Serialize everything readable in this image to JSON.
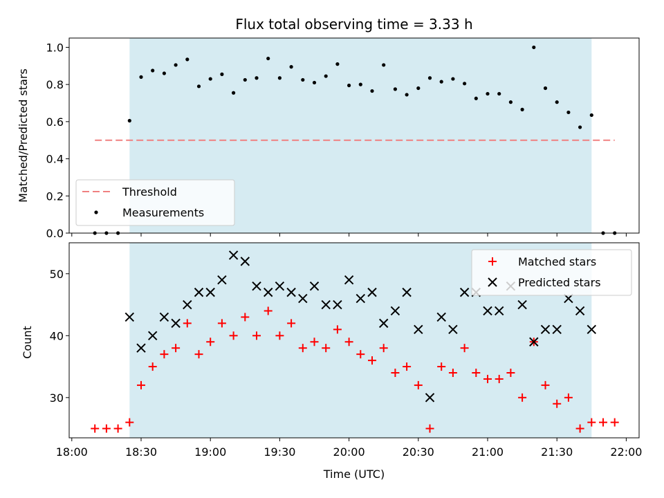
{
  "chart_data": [
    {
      "type": "scatter",
      "title": "Flux total observing time = 3.33 h",
      "xlabel": "",
      "ylabel": "Matched/Predicted stars",
      "xlim": [
        "18:00",
        "22:00"
      ],
      "ylim": [
        0.0,
        1.05
      ],
      "yticks": [
        "0.0",
        "0.2",
        "0.4",
        "0.6",
        "0.8",
        "1.0"
      ],
      "shaded_interval": [
        "18:25",
        "21:45"
      ],
      "shade_color": "#add8e6",
      "legend_position": "lower-left",
      "series": [
        {
          "name": "Threshold",
          "type": "line",
          "style": "dashed",
          "color": "#f08080",
          "x": [
            "18:10",
            "21:55"
          ],
          "y": [
            0.5,
            0.5
          ]
        },
        {
          "name": "Measurements",
          "type": "scatter",
          "marker": "dot",
          "color": "#000000",
          "x": [
            "18:10",
            "18:15",
            "18:20",
            "18:25",
            "18:30",
            "18:35",
            "18:40",
            "18:45",
            "18:50",
            "18:55",
            "19:00",
            "19:05",
            "19:10",
            "19:15",
            "19:20",
            "19:25",
            "19:30",
            "19:35",
            "19:40",
            "19:45",
            "19:50",
            "19:55",
            "20:00",
            "20:05",
            "20:10",
            "20:15",
            "20:20",
            "20:25",
            "20:30",
            "20:35",
            "20:40",
            "20:45",
            "20:50",
            "20:55",
            "21:00",
            "21:05",
            "21:10",
            "21:15",
            "21:20",
            "21:25",
            "21:30",
            "21:35",
            "21:40",
            "21:45",
            "21:50",
            "21:55"
          ],
          "y": [
            0.0,
            0.0,
            0.0,
            0.605,
            0.84,
            0.875,
            0.86,
            0.905,
            0.935,
            0.79,
            0.83,
            0.855,
            0.755,
            0.825,
            0.835,
            0.94,
            0.835,
            0.895,
            0.825,
            0.81,
            0.845,
            0.91,
            0.795,
            0.8,
            0.765,
            0.905,
            0.775,
            0.745,
            0.78,
            0.835,
            0.815,
            0.83,
            0.805,
            0.725,
            0.75,
            0.75,
            0.705,
            0.665,
            1.0,
            0.78,
            0.705,
            0.65,
            0.57,
            0.635,
            0.0,
            0.0
          ]
        }
      ]
    },
    {
      "type": "scatter",
      "xlabel": "Time (UTC)",
      "ylabel": "Count",
      "xlim": [
        "18:00",
        "22:00"
      ],
      "ylim": [
        23.5,
        55
      ],
      "yticks": [
        "30",
        "40",
        "50"
      ],
      "xticks": [
        "18:00",
        "18:30",
        "19:00",
        "19:30",
        "20:00",
        "20:30",
        "21:00",
        "21:30",
        "22:00"
      ],
      "shaded_interval": [
        "18:25",
        "21:45"
      ],
      "shade_color": "#add8e6",
      "legend_position": "upper-right",
      "series": [
        {
          "name": "Matched stars",
          "marker": "plus",
          "color": "#ff0000",
          "x": [
            "18:10",
            "18:15",
            "18:20",
            "18:25",
            "18:30",
            "18:35",
            "18:40",
            "18:45",
            "18:50",
            "18:55",
            "19:00",
            "19:05",
            "19:10",
            "19:15",
            "19:20",
            "19:25",
            "19:30",
            "19:35",
            "19:40",
            "19:45",
            "19:50",
            "19:55",
            "20:00",
            "20:05",
            "20:10",
            "20:15",
            "20:20",
            "20:25",
            "20:30",
            "20:35",
            "20:40",
            "20:45",
            "20:50",
            "20:55",
            "21:00",
            "21:05",
            "21:10",
            "21:15",
            "21:20",
            "21:25",
            "21:30",
            "21:35",
            "21:40",
            "21:45",
            "21:50",
            "21:55"
          ],
          "y": [
            25,
            25,
            25,
            26,
            32,
            35,
            37,
            38,
            42,
            37,
            39,
            42,
            40,
            43,
            40,
            44,
            40,
            42,
            38,
            39,
            38,
            41,
            39,
            37,
            36,
            38,
            34,
            35,
            32,
            25,
            35,
            34,
            38,
            34,
            33,
            33,
            34,
            30,
            39,
            32,
            29,
            30,
            25,
            26,
            26,
            26
          ]
        },
        {
          "name": "Predicted stars",
          "marker": "x",
          "color": "#000000",
          "x": [
            "18:25",
            "18:30",
            "18:35",
            "18:40",
            "18:45",
            "18:50",
            "18:55",
            "19:00",
            "19:05",
            "19:10",
            "19:15",
            "19:20",
            "19:25",
            "19:30",
            "19:35",
            "19:40",
            "19:45",
            "19:50",
            "19:55",
            "20:00",
            "20:05",
            "20:10",
            "20:15",
            "20:20",
            "20:25",
            "20:30",
            "20:35",
            "20:40",
            "20:45",
            "20:50",
            "20:55",
            "21:00",
            "21:05",
            "21:10",
            "21:15",
            "21:20",
            "21:25",
            "21:30",
            "21:35",
            "21:40",
            "21:45"
          ],
          "y": [
            43,
            38,
            40,
            43,
            42,
            45,
            47,
            47,
            49,
            53,
            52,
            48,
            47,
            48,
            47,
            46,
            48,
            45,
            45,
            49,
            46,
            47,
            42,
            44,
            47,
            41,
            30,
            43,
            41,
            47,
            47,
            44,
            44,
            48,
            45,
            39,
            41,
            41,
            46,
            44,
            41
          ]
        }
      ]
    }
  ]
}
